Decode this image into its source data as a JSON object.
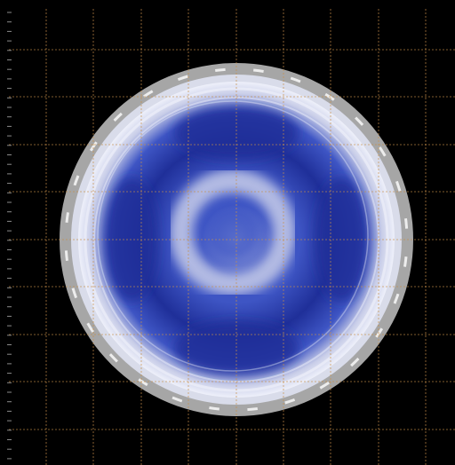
{
  "image": {
    "subject": "circular-sample-disc",
    "colors": {
      "background": "#000000",
      "grid_line": "#c8904a",
      "tick_mark": "#8a8a8a",
      "rim_outer": "#a6a6a6",
      "rim_inner": "#d9dcea",
      "sample_dark": "#1f2f99",
      "sample_mid": "#3e55c4",
      "sample_light": "#c8cde8",
      "sample_highlight": "#eef0fa"
    },
    "grid": {
      "visible": true,
      "style": "dashed"
    }
  }
}
